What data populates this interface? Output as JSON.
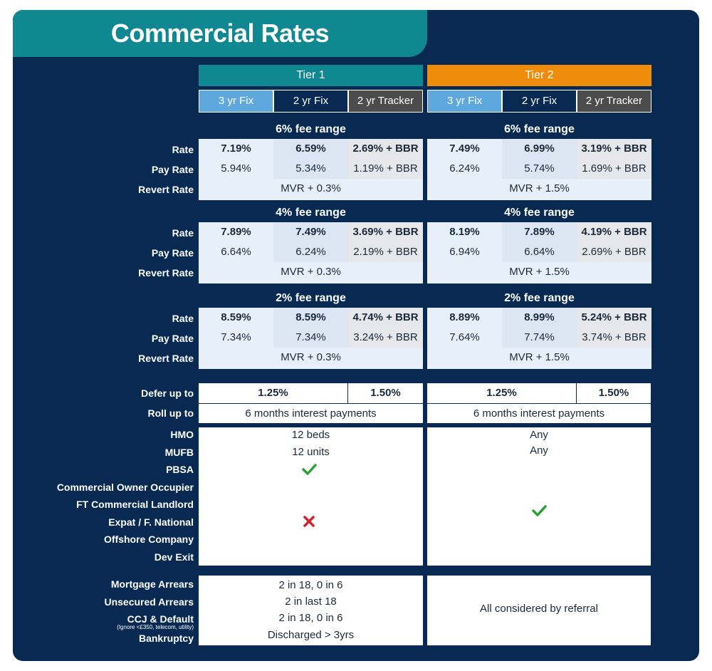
{
  "title": "Commercial Rates",
  "tiers": [
    {
      "name": "Tier 1",
      "color": "#0f8891",
      "products": [
        "3 yr Fix",
        "2 yr Fix",
        "2 yr Tracker"
      ]
    },
    {
      "name": "Tier 2",
      "color": "#ef8c0c",
      "products": [
        "3 yr Fix",
        "2 yr Fix",
        "2 yr Tracker"
      ]
    }
  ],
  "product_colors": [
    "#5ea8dd",
    "#082a52",
    "#4c4c4c"
  ],
  "row_labels": {
    "rate": "Rate",
    "pay_rate": "Pay Rate",
    "revert_rate": "Revert Rate"
  },
  "fee_ranges": [
    {
      "label": "6% fee range",
      "tier1": {
        "rate": [
          "7.19%",
          "6.59%",
          "2.69% + BBR"
        ],
        "pay": [
          "5.94%",
          "5.34%",
          "1.19% + BBR"
        ],
        "revert": "MVR + 0.3%"
      },
      "tier2": {
        "rate": [
          "7.49%",
          "6.99%",
          "3.19% + BBR"
        ],
        "pay": [
          "6.24%",
          "5.74%",
          "1.69% + BBR"
        ],
        "revert": "MVR + 1.5%"
      }
    },
    {
      "label": "4% fee range",
      "tier1": {
        "rate": [
          "7.89%",
          "7.49%",
          "3.69% + BBR"
        ],
        "pay": [
          "6.64%",
          "6.24%",
          "2.19% + BBR"
        ],
        "revert": "MVR + 0.3%"
      },
      "tier2": {
        "rate": [
          "8.19%",
          "7.89%",
          "4.19% + BBR"
        ],
        "pay": [
          "6.94%",
          "6.64%",
          "2.69% + BBR"
        ],
        "revert": "MVR + 1.5%"
      }
    },
    {
      "label": "2% fee range",
      "tier1": {
        "rate": [
          "8.59%",
          "8.59%",
          "4.74% + BBR"
        ],
        "pay": [
          "7.34%",
          "7.34%",
          "3.24% + BBR"
        ],
        "revert": "MVR + 0.3%"
      },
      "tier2": {
        "rate": [
          "8.89%",
          "8.99%",
          "5.24% + BBR"
        ],
        "pay": [
          "7.64%",
          "7.74%",
          "3.74% + BBR"
        ],
        "revert": "MVR + 1.5%"
      }
    }
  ],
  "defer": {
    "label": "Defer up to",
    "tier1": [
      "1.25%",
      "1.50%"
    ],
    "tier2": [
      "1.25%",
      "1.50%"
    ]
  },
  "roll": {
    "label": "Roll up  to",
    "tier1": "6 months interest payments",
    "tier2": "6 months interest payments"
  },
  "property": {
    "labels": [
      "HMO",
      "MUFB",
      "PBSA",
      "Commercial Owner Occupier",
      "FT Commercial Landlord",
      "Expat / F. National",
      "Offshore Company",
      "Dev Exit"
    ],
    "tier1": {
      "hmo": "12 beds",
      "mufb": "12 units",
      "pbsa": "check-icon",
      "others": "cross-icon"
    },
    "tier2": {
      "hmo": "Any",
      "mufb": "Any",
      "others": "check-icon"
    }
  },
  "credit": {
    "labels": [
      "Mortgage Arrears",
      "Unsecured Arrears",
      "CCJ & Default",
      "Bankruptcy"
    ],
    "ccj_note": "(Ignore <£350, telecom, utility)",
    "tier1": [
      "2 in 18, 0 in 6",
      "2 in last 18",
      "2 in 18, 0 in 6",
      "Discharged > 3yrs"
    ],
    "tier2": "All considered by referral"
  },
  "colors": {
    "navy": "#082a52",
    "teal": "#0f8891",
    "orange": "#ef8c0c",
    "check": "#2aa134",
    "cross": "#d9202a"
  }
}
